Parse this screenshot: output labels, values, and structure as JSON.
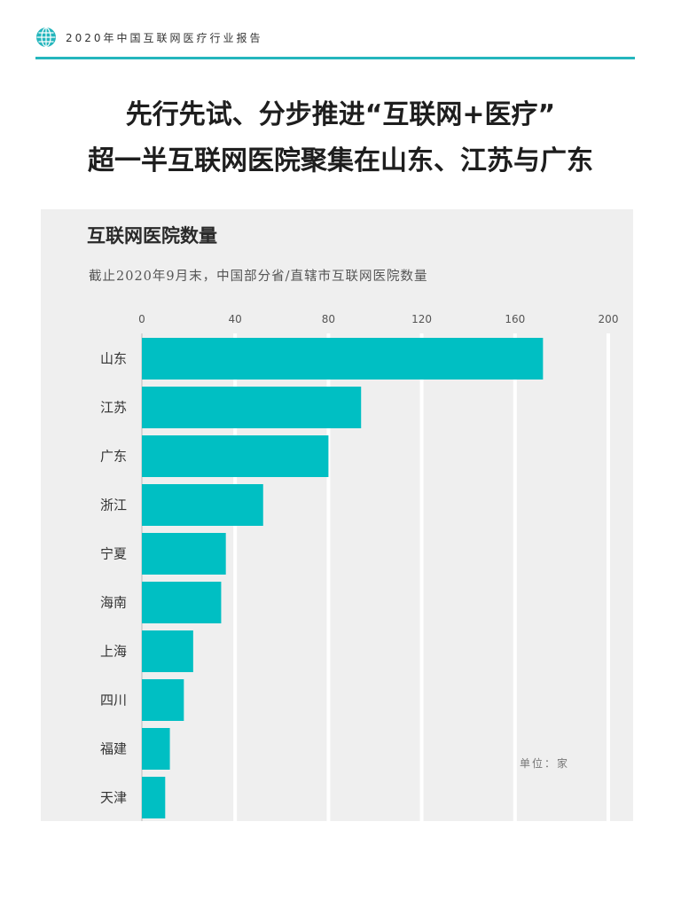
{
  "header": {
    "report_title": "2020年中国互联网医疗行业报告",
    "accent_color": "#24b6bd"
  },
  "headline": {
    "line1": "先行先试、分步推进“互联网+医疗”",
    "line2": "超一半互联网医院聚集在山东、江苏与广东"
  },
  "chart_data": {
    "type": "bar",
    "orientation": "horizontal",
    "title": "互联网医院数量",
    "subtitle": "截止2020年9月末，中国部分省/直辖市互联网医院数量",
    "unit_label": "单位：家",
    "categories": [
      "山东",
      "江苏",
      "广东",
      "浙江",
      "宁夏",
      "海南",
      "上海",
      "四川",
      "福建",
      "天津"
    ],
    "values": [
      172,
      94,
      80,
      52,
      36,
      34,
      22,
      18,
      12,
      10
    ],
    "xlim": [
      0,
      200
    ],
    "xticks": [
      0,
      40,
      80,
      120,
      160,
      200
    ],
    "grid": true,
    "bar_color": "#00bfc3",
    "background_color": "#efefef"
  }
}
